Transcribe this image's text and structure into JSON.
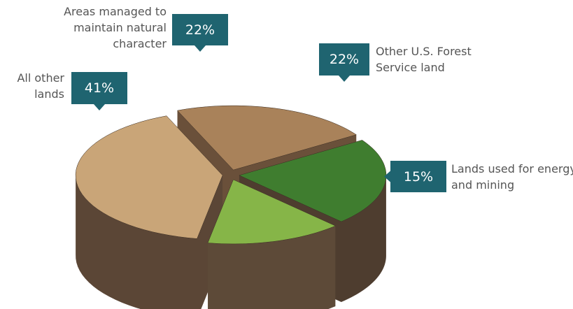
{
  "chart_data": {
    "type": "pie",
    "categories": [
      "All other lands",
      "Areas managed to maintain natural character",
      "Other U.S. Forest Service land",
      "Lands used for energy and mining"
    ],
    "values": [
      41,
      22,
      22,
      15
    ],
    "value_labels": [
      "41%",
      "22%",
      "22%",
      "15%"
    ],
    "colors": [
      "#c9a578",
      "#a9825a",
      "#3f7d2f",
      "#86b548"
    ]
  }
}
